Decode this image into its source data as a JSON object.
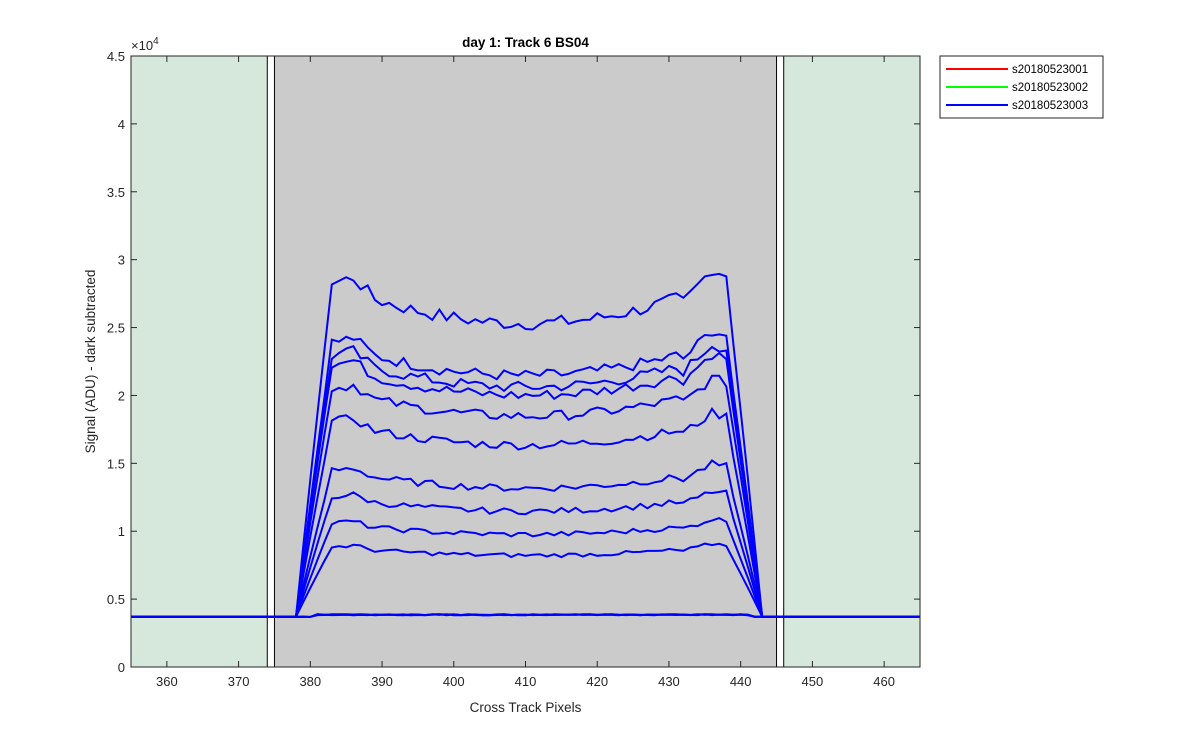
{
  "chart_data": {
    "type": "line",
    "title": "day 1: Track 6  BS04",
    "xlabel": "Cross Track Pixels",
    "ylabel": "Signal (ADU) - dark subtracted",
    "y_exponent_label": "×10",
    "y_exponent": "4",
    "xlim": [
      355,
      465
    ],
    "ylim": [
      0,
      45000
    ],
    "x_ticks": [
      360,
      370,
      380,
      390,
      400,
      410,
      420,
      430,
      440,
      450,
      460
    ],
    "x_tick_labels": [
      "360",
      "370",
      "380",
      "390",
      "400",
      "410",
      "420",
      "430",
      "440",
      "450",
      "460"
    ],
    "y_ticks": [
      0,
      5000,
      10000,
      15000,
      20000,
      25000,
      30000,
      35000,
      40000,
      45000
    ],
    "y_tick_labels": [
      "0",
      "0.5",
      "1",
      "1.5",
      "2",
      "2.5",
      "3",
      "3.5",
      "4",
      "4.5"
    ],
    "grid": false,
    "legend_position": "outside-top-right",
    "regions": [
      {
        "name": "left-guard",
        "x0": 355,
        "x1": 374,
        "color": "#d6e8dc"
      },
      {
        "name": "active-area",
        "x0": 375,
        "x1": 445,
        "color": "#cbcbcb"
      },
      {
        "name": "right-guard",
        "x0": 446,
        "x1": 465,
        "color": "#d6e8dc"
      }
    ],
    "series": [
      {
        "name": "s20180523001",
        "color": "#ff0000",
        "values": []
      },
      {
        "name": "s20180523002",
        "color": "#00ff00",
        "values": []
      },
      {
        "name": "s20180523003",
        "color": "#0000ff",
        "plateau_levels": [
          29000,
          24500,
          23500,
          22800,
          21000,
          18500,
          14800,
          12800,
          10800,
          9000
        ],
        "baseline": 3700
      }
    ]
  }
}
